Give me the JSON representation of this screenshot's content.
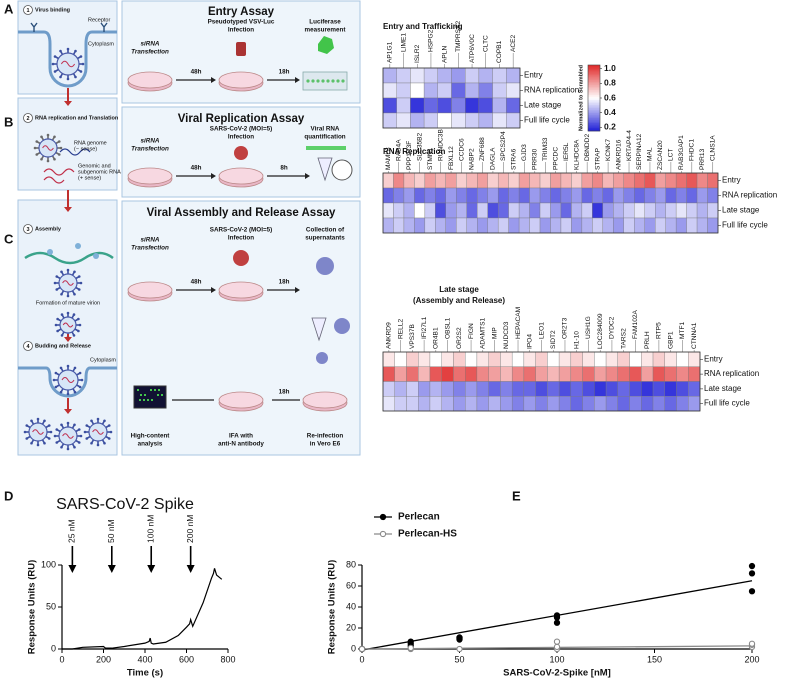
{
  "panel_labels": [
    "A",
    "B",
    "C",
    "D",
    "E"
  ],
  "schematic": {
    "steps": [
      {
        "number": "1",
        "title": "Virus binding"
      },
      {
        "number": "2",
        "title": "RNA replication and Translation"
      },
      {
        "number": "3",
        "title": "Assembly"
      },
      {
        "number": "4",
        "title": "Budding and Release"
      }
    ],
    "receptor": "Receptor",
    "cytoplasm_top": "Cytoplasm",
    "rna_genome": [
      "RNA genome",
      "(− sense)"
    ],
    "genomic_rna": [
      "Genomic and",
      "subgenomic RNA",
      "(+ sense)"
    ],
    "virion": "Formation of mature virion",
    "cytoplasm_bottom": "Cytoplasm"
  },
  "assays": [
    {
      "title": "Entry Assay",
      "steps": [
        [
          "siRNA",
          "Transfection"
        ],
        [
          "Pseudotyped VSV-Luc",
          "Infection"
        ],
        [
          "Luciferase",
          "measurement"
        ]
      ],
      "times": [
        "48h",
        "18h"
      ]
    },
    {
      "title": "Viral Replication Assay",
      "steps": [
        [
          "siRNA",
          "Transfection"
        ],
        [
          "SARS-CoV-2 (MOI=5)",
          "Infection"
        ],
        [
          "Viral RNA",
          "quantification"
        ]
      ],
      "times": [
        "48h",
        "8h"
      ]
    },
    {
      "title": "Viral Assembly and Release Assay",
      "steps": [
        [
          "siRNA",
          "Transfection"
        ],
        [
          "SARS-CoV-2 (MOI=5)",
          "Infection"
        ],
        [
          "Collection of",
          "supernatants"
        ],
        [
          "Re-infection",
          "in Vero E6"
        ],
        [
          "IFA with",
          "anti-N antibody"
        ],
        [
          "High-content",
          "analysis"
        ]
      ],
      "times": [
        "48h",
        "18h",
        "18h"
      ]
    }
  ],
  "chart_data": [
    {
      "type": "heatmap",
      "title": "Entry and Trafficking",
      "x_categories": [
        "AP1G1",
        "LIME1",
        "ISLR2",
        "HSPG2",
        "APLN",
        "TMPRSS2",
        "ATP6V0C",
        "CLTC",
        "COPB1",
        "ACE2"
      ],
      "y_categories": [
        "Entry",
        "RNA replication",
        "Late stage",
        "Full life cycle"
      ],
      "values": [
        [
          0.45,
          0.5,
          0.55,
          0.5,
          0.45,
          0.4,
          0.5,
          0.45,
          0.5,
          0.45
        ],
        [
          0.55,
          0.5,
          0.6,
          0.45,
          0.5,
          0.3,
          0.45,
          0.35,
          0.5,
          0.55
        ],
        [
          0.25,
          0.5,
          0.2,
          0.3,
          0.25,
          0.35,
          0.2,
          0.25,
          0.45,
          0.3
        ],
        [
          0.5,
          0.55,
          0.45,
          0.5,
          0.6,
          0.55,
          0.5,
          0.45,
          0.55,
          0.5
        ]
      ],
      "colorbar": {
        "label": "Normalized to Scrambled",
        "lim": [
          0.15,
          1.05
        ],
        "ticks": [
          {
            "value": 1,
            "label": "1.0"
          },
          0.8,
          0.6,
          0.4,
          0.2
        ],
        "colors": [
          "#1c1cd6",
          "#ffffff",
          "#e02828"
        ]
      }
    },
    {
      "type": "heatmap",
      "title": "RNA Replication",
      "x_categories": [
        "MAML3",
        "RAB4A",
        "PPP1R3F",
        "SLC35B2",
        "STMN1",
        "RUNDC3B",
        "FBXL12",
        "CCDC6",
        "NABP2",
        "ZNF688",
        "DAGLA",
        "SPCS2P4",
        "STRA6",
        "GJD3",
        "PRR30",
        "TRIM33",
        "PPCDC",
        "IER5L",
        "KLHDC8A",
        "DBNDD2",
        "STRAP",
        "KCNK7",
        "ANKRD16",
        "KRTAP4-4",
        "SERPINA12",
        "MAL",
        "ZSCAN20",
        "LCT",
        "RAB3GAP1",
        "FHDC1",
        "PRR13",
        "CLNS1A"
      ],
      "y_categories": [
        "Entry",
        "RNA replication",
        "Late stage",
        "Full life cycle"
      ],
      "values": [
        [
          0.7,
          0.85,
          0.75,
          0.7,
          0.8,
          0.75,
          0.8,
          0.7,
          0.75,
          0.8,
          0.7,
          0.75,
          0.7,
          0.8,
          0.75,
          0.7,
          0.8,
          0.75,
          0.7,
          0.8,
          0.85,
          0.75,
          0.8,
          0.85,
          0.9,
          0.95,
          0.8,
          0.85,
          0.9,
          0.95,
          0.85,
          0.9
        ],
        [
          0.3,
          0.35,
          0.4,
          0.3,
          0.35,
          0.3,
          0.4,
          0.35,
          0.3,
          0.35,
          0.4,
          0.3,
          0.35,
          0.3,
          0.4,
          0.35,
          0.3,
          0.35,
          0.4,
          0.3,
          0.35,
          0.3,
          0.4,
          0.35,
          0.3,
          0.35,
          0.4,
          0.3,
          0.35,
          0.3,
          0.4,
          0.35
        ],
        [
          0.55,
          0.5,
          0.45,
          0.6,
          0.5,
          0.25,
          0.4,
          0.45,
          0.3,
          0.5,
          0.25,
          0.3,
          0.5,
          0.45,
          0.35,
          0.5,
          0.4,
          0.3,
          0.45,
          0.5,
          0.2,
          0.4,
          0.45,
          0.5,
          0.55,
          0.5,
          0.45,
          0.5,
          0.55,
          0.5,
          0.45,
          0.5
        ],
        [
          0.45,
          0.5,
          0.45,
          0.4,
          0.5,
          0.45,
          0.4,
          0.5,
          0.45,
          0.4,
          0.45,
          0.5,
          0.4,
          0.45,
          0.5,
          0.4,
          0.45,
          0.5,
          0.4,
          0.45,
          0.5,
          0.45,
          0.4,
          0.5,
          0.45,
          0.4,
          0.5,
          0.45,
          0.4,
          0.5,
          0.45,
          0.4
        ]
      ]
    },
    {
      "type": "heatmap",
      "title": [
        "Late stage",
        "(Assembly and Release)"
      ],
      "x_categories": [
        "ANKRD9",
        "RELL2",
        "VPS37B",
        "IFI27L1",
        "OR4B1",
        "OBSL1",
        "OR2S2",
        "FIGN",
        "ADAMTS1",
        "MIP",
        "NUDCD3",
        "HEPACAM",
        "IPO4",
        "LEO1",
        "SIDT2",
        "OR2T3",
        "H1-10",
        "USH1G",
        "LOC284009",
        "DYDC2",
        "TARS2",
        "FAM102A",
        "PRLH",
        "RTP5",
        "GBP1",
        "MTF1",
        "CTNNA1"
      ],
      "y_categories": [
        "Entry",
        "RNA replication",
        "Late stage",
        "Full life cycle"
      ],
      "values": [
        [
          0.65,
          0.6,
          0.7,
          0.65,
          0.6,
          0.65,
          0.7,
          0.6,
          0.65,
          0.7,
          0.65,
          0.6,
          0.65,
          0.7,
          0.6,
          0.65,
          0.7,
          0.65,
          0.6,
          0.65,
          0.7,
          0.6,
          0.65,
          0.7,
          0.65,
          0.6,
          0.65
        ],
        [
          0.95,
          0.8,
          0.9,
          0.75,
          0.95,
          1.0,
          0.9,
          0.95,
          0.85,
          0.8,
          0.75,
          0.85,
          0.9,
          0.8,
          0.75,
          0.8,
          0.85,
          0.9,
          0.8,
          0.85,
          0.9,
          0.95,
          0.8,
          0.95,
          0.9,
          0.85,
          0.9
        ],
        [
          0.5,
          0.45,
          0.5,
          0.4,
          0.45,
          0.4,
          0.35,
          0.4,
          0.35,
          0.3,
          0.35,
          0.3,
          0.3,
          0.25,
          0.3,
          0.25,
          0.3,
          0.25,
          0.2,
          0.25,
          0.3,
          0.25,
          0.2,
          0.25,
          0.2,
          0.25,
          0.3
        ],
        [
          0.55,
          0.5,
          0.5,
          0.45,
          0.5,
          0.45,
          0.4,
          0.45,
          0.4,
          0.45,
          0.4,
          0.35,
          0.4,
          0.35,
          0.4,
          0.35,
          0.3,
          0.35,
          0.4,
          0.35,
          0.3,
          0.35,
          0.3,
          0.35,
          0.3,
          0.35,
          0.4
        ]
      ]
    },
    {
      "type": "line",
      "title": "SARS-CoV-2 Spike",
      "x_label": "Time  (s)",
      "y_label": "Response Units (RU)",
      "x": [
        0,
        50,
        100,
        200,
        210,
        240,
        300,
        400,
        420,
        425,
        430,
        440,
        500,
        560,
        600,
        615,
        620,
        630,
        680,
        720,
        730,
        735,
        745,
        770
      ],
      "values": [
        0,
        0,
        2,
        3,
        1,
        1,
        3,
        7,
        9,
        13,
        7,
        6,
        8,
        16,
        26,
        30,
        35,
        27,
        55,
        84,
        90,
        96,
        88,
        83
      ],
      "color": "#000000",
      "xlim": [
        0,
        800
      ],
      "xticks": [
        0,
        200,
        400,
        600,
        800
      ],
      "ylim": [
        0,
        100
      ],
      "yticks": [
        0,
        50,
        100
      ],
      "annotations": [
        {
          "x": 50,
          "text": "25 nM"
        },
        {
          "x": 240,
          "text": "50 nM"
        },
        {
          "x": 430,
          "text": "100 nM"
        },
        {
          "x": 620,
          "text": "200 nM"
        }
      ]
    },
    {
      "type": "scatter",
      "x_label": "SARS-CoV-2-Spike [nM]",
      "y_label": "Response Units (RU)",
      "xlim": [
        0,
        200
      ],
      "xticks": [
        0,
        50,
        100,
        150,
        200
      ],
      "ylim": [
        0,
        80
      ],
      "yticks": [
        0,
        20,
        40,
        60,
        80
      ],
      "legend": "upper left",
      "series": [
        {
          "name": "Perlecan",
          "color": "#000000",
          "marker": "filled",
          "x": [
            0,
            0,
            0,
            25,
            25,
            25,
            50,
            50,
            50,
            100,
            100,
            100,
            200,
            200,
            200
          ],
          "values": [
            0,
            0,
            0,
            3,
            5,
            7,
            9,
            10,
            11,
            25,
            30,
            32,
            55,
            72,
            79
          ],
          "fit": {
            "x": [
              0,
              200
            ],
            "values": [
              -1,
              65
            ]
          }
        },
        {
          "name": "Perlecan-HS",
          "color": "#8a8a8a",
          "marker": "open",
          "x": [
            0,
            0,
            25,
            25,
            50,
            100,
            100,
            100,
            200,
            200,
            200
          ],
          "values": [
            0,
            0,
            0,
            1,
            0,
            0,
            2,
            7,
            2,
            4,
            5
          ],
          "fit": {
            "x": [
              0,
              200
            ],
            "values": [
              0,
              3
            ]
          }
        }
      ]
    }
  ]
}
